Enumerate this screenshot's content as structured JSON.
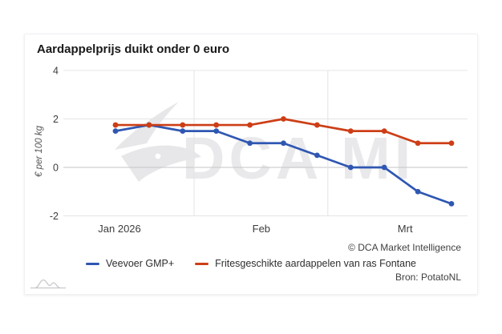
{
  "chart_data": {
    "type": "line",
    "title": "Aardappelprijs duikt onder 0 euro",
    "ylabel": "€ per 100 kg",
    "ylim": [
      -2.5,
      4
    ],
    "yticks": [
      4,
      2,
      0,
      -2
    ],
    "grid": true,
    "x_unit": "weeks, Jan 2026 - Mrt 2026",
    "xticks": [
      {
        "label": "Jan 2026",
        "idx": 0.12
      },
      {
        "label": "Feb",
        "idx": 4.34
      },
      {
        "label": "Mrt",
        "idx": 8.62
      }
    ],
    "month_gridlines_idx": [
      2.34,
      6.32
    ],
    "series": [
      {
        "name": "Veevoer GMP+",
        "color": "#2f57b2",
        "values": [
          1.5,
          1.75,
          1.5,
          1.5,
          1.0,
          1.0,
          0.5,
          0.0,
          0.0,
          -1.0,
          -1.5
        ]
      },
      {
        "name": "Fritesgeschikte aardappelen van ras Fontane",
        "color": "#cd3e16",
        "values": [
          1.75,
          1.75,
          1.75,
          1.75,
          1.75,
          2.0,
          1.75,
          1.5,
          1.5,
          1.0,
          1.0
        ]
      }
    ],
    "legend_position": "bottom",
    "copyright": "© DCA Market Intelligence",
    "source": "Bron: PotatoNL",
    "watermark": "DCA MI"
  }
}
